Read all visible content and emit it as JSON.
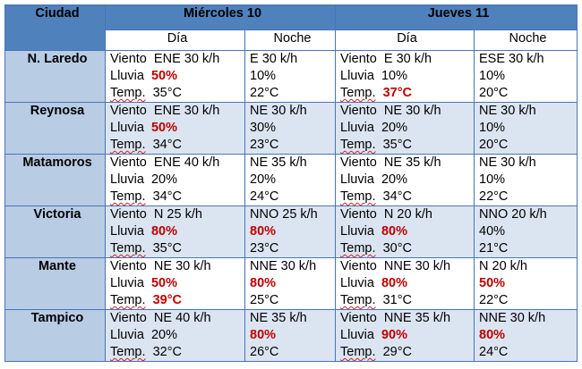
{
  "header": {
    "city_label": "Ciudad",
    "days": [
      "Miércoles 10",
      "Jueves 11"
    ],
    "periods": [
      "Día",
      "Noche",
      "Día",
      "Noche"
    ]
  },
  "labels": {
    "wind": "Viento",
    "rain": "Lluvia",
    "temp": "Temp."
  },
  "highlight_color": "#c00000",
  "rows": [
    {
      "city": "N. Laredo",
      "cells": [
        {
          "wind": "ENE 30 k/h",
          "rain": "50%",
          "temp": "35°C",
          "rain_hl": true,
          "temp_hl": false
        },
        {
          "wind": "E 30 k/h",
          "rain": "10%",
          "temp": "22°C",
          "rain_hl": false,
          "temp_hl": false
        },
        {
          "wind": "E 30 k/h",
          "rain": "10%",
          "temp": "37°C",
          "rain_hl": false,
          "temp_hl": true
        },
        {
          "wind": "ESE 30 k/h",
          "rain": "10%",
          "temp": "20°C",
          "rain_hl": false,
          "temp_hl": false
        }
      ]
    },
    {
      "city": "Reynosa",
      "cells": [
        {
          "wind": "ENE 30 k/h",
          "rain": "50%",
          "temp": "34°C",
          "rain_hl": true,
          "temp_hl": false
        },
        {
          "wind": "NE 30 k/h",
          "rain": "30%",
          "temp": "23°C",
          "rain_hl": false,
          "temp_hl": false
        },
        {
          "wind": "NE 30 k/h",
          "rain": "20%",
          "temp": "35°C",
          "rain_hl": false,
          "temp_hl": false
        },
        {
          "wind": "NE 30 k/h",
          "rain": "10%",
          "temp": "20°C",
          "rain_hl": false,
          "temp_hl": false
        }
      ]
    },
    {
      "city": "Matamoros",
      "cells": [
        {
          "wind": "ENE 40 k/h",
          "rain": "20%",
          "temp": "34°C",
          "rain_hl": false,
          "temp_hl": false
        },
        {
          "wind": "NE 35 k/h",
          "rain": "20%",
          "temp": "24°C",
          "rain_hl": false,
          "temp_hl": false
        },
        {
          "wind": "NE 35 k/h",
          "rain": "20%",
          "temp": "34°C",
          "rain_hl": false,
          "temp_hl": false
        },
        {
          "wind": "NE 30 k/h",
          "rain": "10%",
          "temp": "22°C",
          "rain_hl": false,
          "temp_hl": false
        }
      ]
    },
    {
      "city": "Victoria",
      "cells": [
        {
          "wind": "N 25 k/h",
          "rain": "80%",
          "temp": "35°C",
          "rain_hl": true,
          "temp_hl": false
        },
        {
          "wind": "NNO 25 k/h",
          "rain": "80%",
          "temp": "23°C",
          "rain_hl": true,
          "temp_hl": false
        },
        {
          "wind": "N 20 k/h",
          "rain": "80%",
          "temp": "30°C",
          "rain_hl": true,
          "temp_hl": false
        },
        {
          "wind": "NNO 20 k/h",
          "rain": "40%",
          "temp": "21°C",
          "rain_hl": false,
          "temp_hl": false
        }
      ]
    },
    {
      "city": "Mante",
      "cells": [
        {
          "wind": "NE 30 k/h",
          "rain": "50%",
          "temp": "39°C",
          "rain_hl": true,
          "temp_hl": true
        },
        {
          "wind": "NNE 30 k/h",
          "rain": "80%",
          "temp": "25°C",
          "rain_hl": true,
          "temp_hl": false
        },
        {
          "wind": "NNE 30 k/h",
          "rain": "80%",
          "temp": "31°C",
          "rain_hl": true,
          "temp_hl": false
        },
        {
          "wind": "N 20 k/h",
          "rain": "50%",
          "temp": "22°C",
          "rain_hl": true,
          "temp_hl": false
        }
      ]
    },
    {
      "city": "Tampico",
      "cells": [
        {
          "wind": "NE 40 k/h",
          "rain": "20%",
          "temp": "32°C",
          "rain_hl": false,
          "temp_hl": false
        },
        {
          "wind": "NE 35 k/h",
          "rain": "80%",
          "temp": "26°C",
          "rain_hl": true,
          "temp_hl": false
        },
        {
          "wind": "NNE 35 k/h",
          "rain": "90%",
          "temp": "29°C",
          "rain_hl": true,
          "temp_hl": false
        },
        {
          "wind": "NNE 30 k/h",
          "rain": "80%",
          "temp": "24°C",
          "rain_hl": true,
          "temp_hl": false
        }
      ]
    }
  ]
}
